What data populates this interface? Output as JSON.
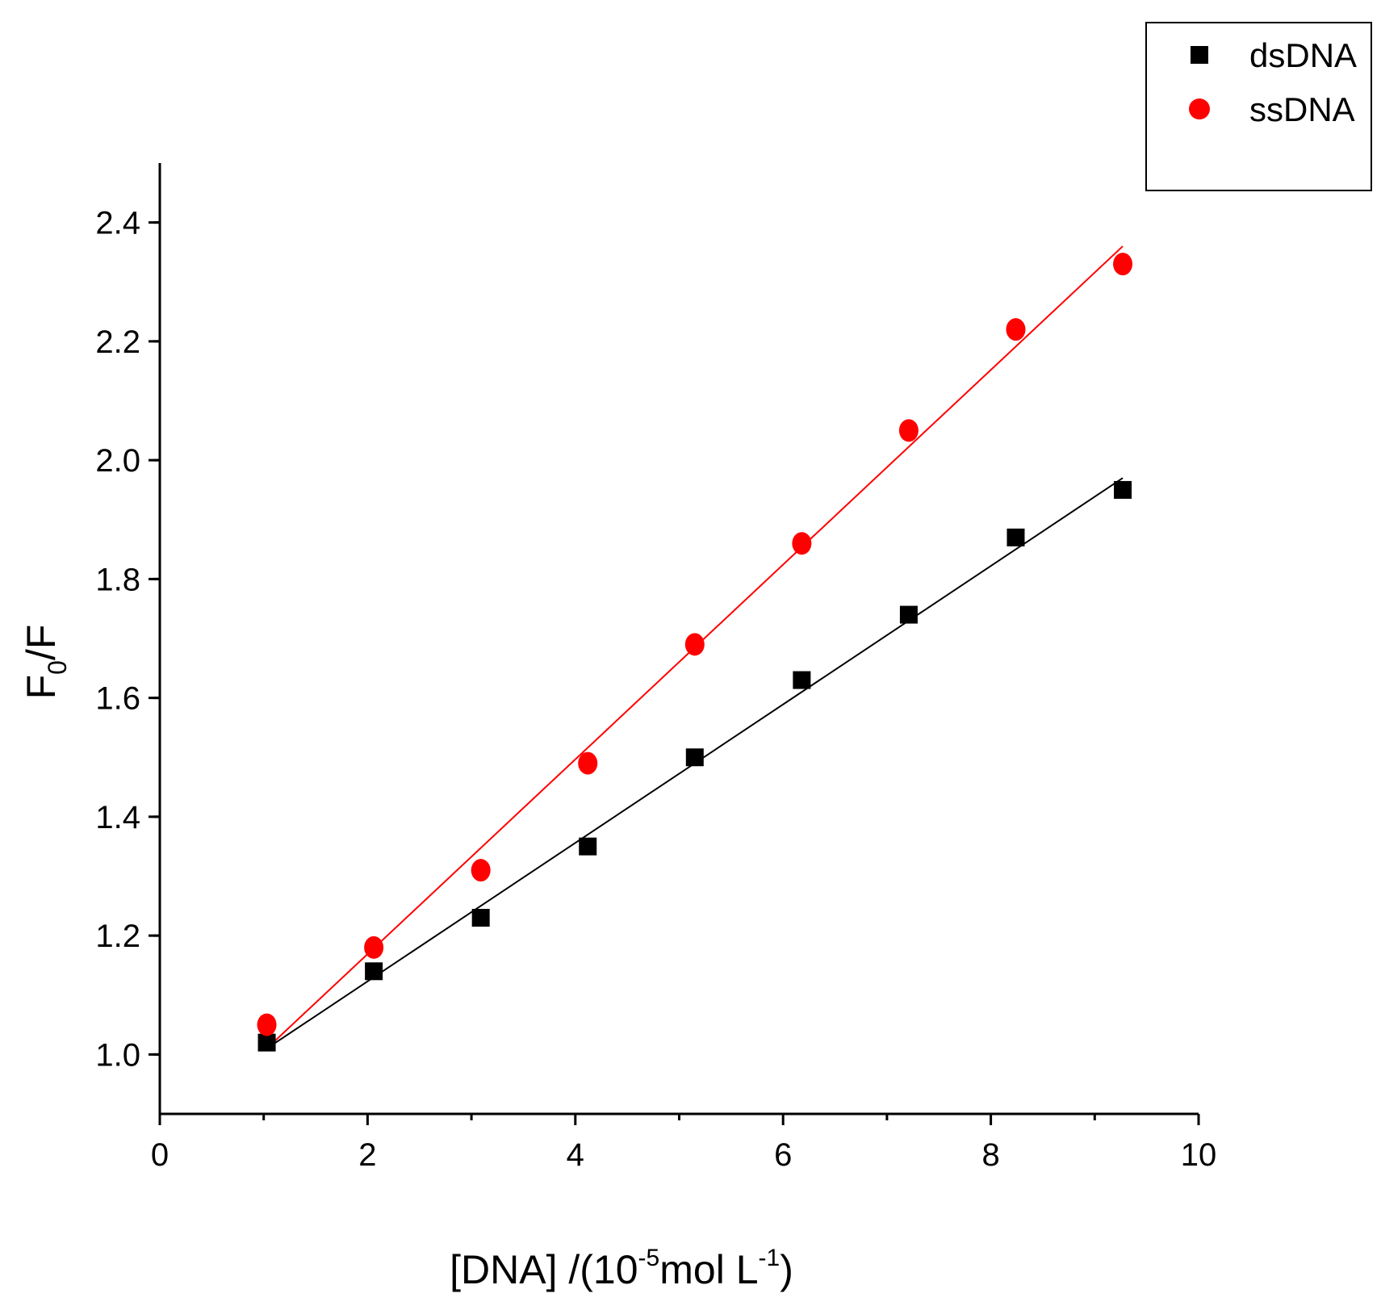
{
  "chart_data": {
    "type": "scatter",
    "title": "",
    "xlabel": {
      "main": "[DNA] /(10",
      "exp1": "-5",
      "mid": "mol L",
      "exp2": "-1",
      "end": ")"
    },
    "ylabel": {
      "main": "F",
      "sub": "0",
      "end": "/F"
    },
    "xlim": [
      0,
      10
    ],
    "ylim": [
      0.9,
      2.5
    ],
    "x_ticks": [
      0,
      2,
      4,
      6,
      8,
      10
    ],
    "x_tick_labels": [
      "0",
      "2",
      "4",
      "6",
      "8",
      "10"
    ],
    "y_ticks": [
      1.0,
      1.2,
      1.4,
      1.6,
      1.8,
      2.0,
      2.2,
      2.4
    ],
    "y_tick_labels": [
      "1.0",
      "1.2",
      "1.4",
      "1.6",
      "1.8",
      "2.0",
      "2.2",
      "2.4"
    ],
    "grid": false,
    "legend_position": "top-right",
    "series": [
      {
        "name": "dsDNA",
        "marker": "square",
        "color": "#000000",
        "x": [
          1.03,
          2.06,
          3.09,
          4.12,
          5.15,
          6.18,
          7.21,
          8.24,
          9.27
        ],
        "y": [
          1.02,
          1.14,
          1.23,
          1.35,
          1.5,
          1.63,
          1.74,
          1.87,
          1.95
        ],
        "fit": {
          "x": [
            1.03,
            9.27
          ],
          "y": [
            1.01,
            1.97
          ]
        }
      },
      {
        "name": "ssDNA",
        "marker": "circle",
        "color": "#ff0000",
        "x": [
          1.03,
          2.06,
          3.09,
          4.12,
          5.15,
          6.18,
          7.21,
          8.24,
          9.27
        ],
        "y": [
          1.05,
          1.18,
          1.31,
          1.49,
          1.69,
          1.86,
          2.05,
          2.22,
          2.33
        ],
        "fit": {
          "x": [
            1.03,
            9.27
          ],
          "y": [
            1.01,
            2.36
          ]
        }
      }
    ]
  }
}
